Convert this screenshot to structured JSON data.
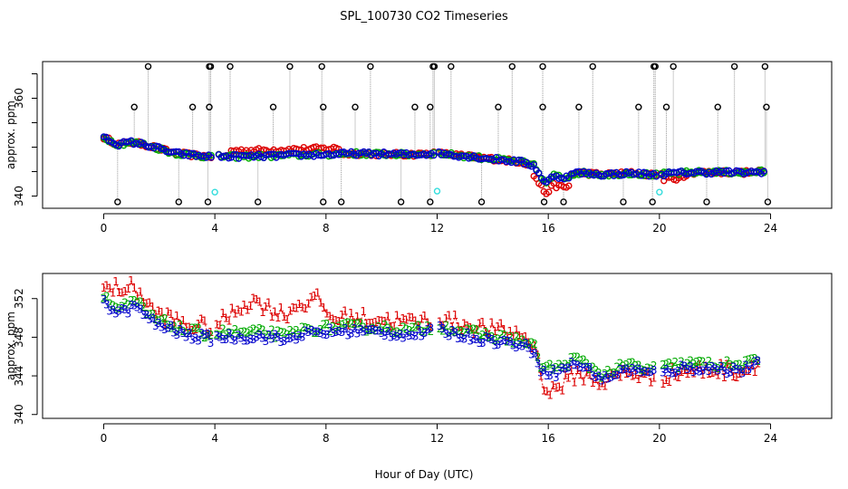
{
  "figure": {
    "title": "SPL_100730  CO2 Timeseries",
    "xlabel": "Hour of Day (UTC)"
  },
  "chart_data": [
    {
      "type": "scatter",
      "name": "top-panel",
      "ylabel": "approx. ppm",
      "xlim": [
        -2.2,
        26.2
      ],
      "ylim": [
        337.5,
        367.5
      ],
      "x_ticks": [
        0,
        4,
        8,
        12,
        16,
        20,
        24
      ],
      "y_ticks": [
        340,
        350,
        360
      ],
      "y_tick_labels": [
        "340",
        "",
        "360"
      ],
      "y_minor_ticks": [
        345,
        355,
        365
      ],
      "series_colors": {
        "high_spike": "#000000",
        "low_spike": "#000000",
        "cal": "#33dddd",
        "red": "#dd0000",
        "green": "#00aa00",
        "blue": "#0000cc",
        "connector": "#999999"
      },
      "high_spikes_x": [
        1.6,
        3.8,
        3.85,
        4.55,
        6.7,
        7.85,
        9.6,
        11.85,
        11.9,
        12.5,
        14.7,
        15.8,
        17.6,
        19.8,
        19.85,
        20.5,
        22.7,
        23.8
      ],
      "high_spike_y": 366.5,
      "mid_spikes_x": [
        1.1,
        3.2,
        3.8,
        6.1,
        7.9,
        9.05,
        11.2,
        11.75,
        14.2,
        15.8,
        17.1,
        19.25,
        20.25,
        22.1,
        23.85
      ],
      "mid_spike_y": 358.2,
      "low_spikes_x": [
        0.5,
        2.7,
        3.75,
        5.55,
        7.9,
        8.55,
        10.7,
        11.75,
        13.6,
        15.85,
        16.55,
        18.7,
        19.75,
        21.7,
        23.9
      ],
      "low_spike_y": 338.8,
      "cal_points": [
        {
          "x": 4.0,
          "y": 340.8
        },
        {
          "x": 12.0,
          "y": 341.0
        },
        {
          "x": 20.0,
          "y": 340.8
        }
      ],
      "baseline": {
        "hours": [
          0,
          0.5,
          1,
          1.5,
          2,
          2.5,
          3,
          3.5,
          3.9,
          4.1,
          5,
          6,
          7,
          8,
          9,
          10,
          11,
          11.9,
          12.1,
          13,
          14,
          15,
          15.5,
          15.9,
          16.2,
          16.6,
          17,
          18,
          19,
          19.9,
          20.1,
          21,
          22,
          23,
          23.8
        ],
        "ppm": [
          352,
          350.6,
          351,
          350.5,
          349.7,
          348.8,
          348.5,
          348.2,
          348.1,
          348.1,
          348.1,
          348.2,
          348.4,
          348.5,
          348.7,
          348.6,
          348.5,
          348.7,
          348.7,
          348.2,
          347.6,
          347,
          346.2,
          342.5,
          344.2,
          343.7,
          344.8,
          344.4,
          344.7,
          344.3,
          344.5,
          344.8,
          344.9,
          344.8,
          345
        ]
      }
    },
    {
      "type": "scatter",
      "name": "bottom-panel",
      "ylabel": "approx. ppm",
      "xlim": [
        -2.2,
        26.2
      ],
      "ylim": [
        339.6,
        354.6
      ],
      "x_ticks": [
        0,
        4,
        8,
        12,
        16,
        20,
        24
      ],
      "y_ticks": [
        340,
        344,
        348,
        352
      ],
      "series": [
        {
          "name": "1",
          "symbol": "1",
          "color": "#dd0000"
        },
        {
          "name": "2",
          "symbol": "2",
          "color": "#00aa00"
        },
        {
          "name": "3",
          "symbol": "3",
          "color": "#0000cc"
        }
      ],
      "baseline": {
        "hours": [
          0,
          0.3,
          0.6,
          1,
          1.3,
          1.6,
          2,
          2.5,
          3,
          3.5,
          3.9,
          4.1,
          5,
          6,
          6.5,
          7,
          8,
          9,
          10,
          11,
          11.9,
          12.1,
          13,
          14,
          15,
          15.5,
          15.8,
          16,
          16.3,
          16.6,
          17,
          17.5,
          18,
          18.5,
          19,
          19.5,
          20,
          20.5,
          21,
          22,
          23,
          23.6
        ],
        "ppm": [
          352,
          350.8,
          350.5,
          351,
          351,
          349.8,
          349.2,
          348.7,
          348.1,
          348,
          347.8,
          348,
          348,
          348,
          347.6,
          348.2,
          348.5,
          348.6,
          348.5,
          348.2,
          348.6,
          348.7,
          348.1,
          347.6,
          347.2,
          346.5,
          344.2,
          344.5,
          344.2,
          344.8,
          345.3,
          344.5,
          343.6,
          344.3,
          344.7,
          344.2,
          344.3,
          344.6,
          344.8,
          344.7,
          344.6,
          345.2
        ]
      },
      "red_offsets": {
        "hours": [
          0,
          0.5,
          1,
          1.3,
          1.6,
          2,
          4,
          4.6,
          5,
          5.5,
          6,
          6.5,
          7,
          7.8,
          8.1,
          9,
          10,
          11,
          12,
          15,
          15.5,
          15.8,
          16,
          16.3,
          16.6,
          17,
          18,
          19,
          20,
          20.5,
          21,
          22,
          23,
          24
        ],
        "delta": [
          0,
          1.5,
          1,
          0.6,
          0.3,
          0,
          0,
          1.2,
          2.3,
          2.6,
          1.8,
          1.6,
          2.1,
          2.3,
          0.4,
          0.3,
          0.2,
          0.2,
          0.1,
          0,
          -0.5,
          -1.8,
          -3.5,
          -2.5,
          -2.6,
          -2.2,
          -1.4,
          -1.4,
          -1.6,
          -1.5,
          -1.4,
          -1.2,
          -1.2,
          -0.8
        ]
      }
    }
  ]
}
